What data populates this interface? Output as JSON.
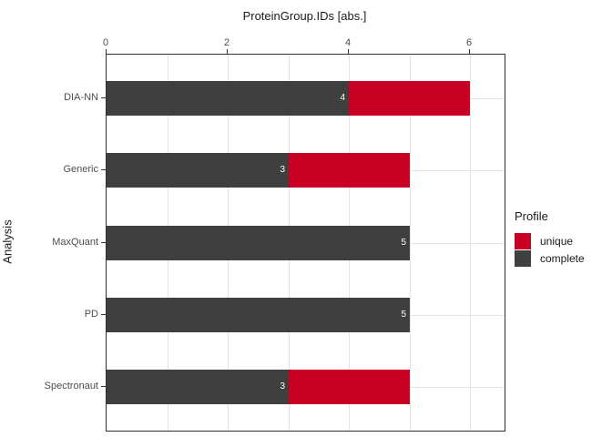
{
  "chart_data": {
    "type": "bar",
    "orientation": "horizontal",
    "stacked": true,
    "title": "ProteinGroup.IDs [abs.]",
    "title_position": "top",
    "xlabel": "ProteinGroup.IDs [abs.]",
    "ylabel": "Analysis",
    "x_axis_position": "top",
    "categories": [
      "DIA-NN",
      "Generic",
      "MaxQuant",
      "PD",
      "Spectronaut"
    ],
    "series": [
      {
        "name": "complete",
        "color": "#3f3f3f",
        "values": [
          4,
          3,
          5,
          5,
          3
        ],
        "labels_shown": true
      },
      {
        "name": "unique",
        "color": "#c80023",
        "values": [
          2,
          2,
          0,
          0,
          2
        ],
        "labels_shown": false
      }
    ],
    "totals": [
      6,
      5,
      5,
      5,
      5
    ],
    "bar_segment_labels": [
      "4",
      "3",
      "5",
      "5",
      "3"
    ],
    "x_ticks": [
      0,
      2,
      4,
      6
    ],
    "x_gridlines": [
      1,
      2,
      3,
      4,
      5,
      6
    ],
    "xlim": [
      0,
      6.57
    ],
    "grid": true,
    "legend": {
      "title": "Profile",
      "position": "right",
      "entries": [
        {
          "label": "unique",
          "color": "#c80023"
        },
        {
          "label": "complete",
          "color": "#3f3f3f"
        }
      ]
    },
    "colors": {
      "panel_background": "#ffffff",
      "panel_border": "#2f2f2f",
      "gridline": "#e4e4e4",
      "axis_text": "#4d4d4d",
      "axis_title": "#1a1a1a",
      "bar_label_text": "#ffffff"
    }
  }
}
